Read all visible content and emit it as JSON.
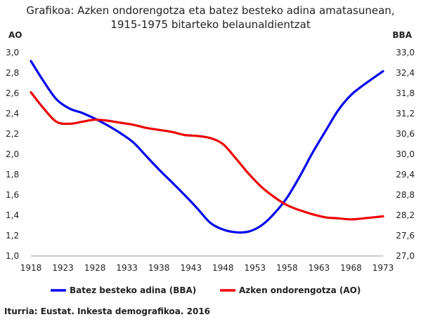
{
  "chart_data": {
    "type": "line",
    "title_lines": [
      "Grafikoa: Azken ondorengotza eta batez besteko adina amatasunean,",
      "1915-1975 bitarteko belaunaldientzat"
    ],
    "left_axis": {
      "label": "AO",
      "min": 1.0,
      "max": 3.0,
      "ticks": [
        "1,0",
        "1,2",
        "1,4",
        "1,6",
        "1,8",
        "2,0",
        "2,2",
        "2,4",
        "2,6",
        "2,8",
        "3,0"
      ]
    },
    "right_axis": {
      "label": "BBA",
      "min": 27.0,
      "max": 33.0,
      "ticks": [
        "27,0",
        "27,6",
        "28,2",
        "28,8",
        "29,4",
        "30,0",
        "30,6",
        "31,2",
        "31,8",
        "32,4",
        "33,0"
      ]
    },
    "x_ticks": [
      "1918",
      "1923",
      "1928",
      "1933",
      "1938",
      "1943",
      "1948",
      "1953",
      "1958",
      "1963",
      "1968",
      "1973"
    ],
    "x_range": [
      1918,
      1973
    ],
    "grid": false,
    "legend_position": "bottom",
    "colors": {
      "blue": "#0000ee",
      "red": "#ee0000"
    },
    "series": [
      {
        "name": "Batez besteko adina (BBA)",
        "axis": "right",
        "color": "#0000ee",
        "x": [
          1918,
          1920,
          1922,
          1924,
          1926,
          1928,
          1930,
          1932,
          1934,
          1936,
          1938,
          1940,
          1942,
          1944,
          1946,
          1948,
          1950,
          1952,
          1954,
          1956,
          1958,
          1960,
          1962,
          1964,
          1966,
          1968,
          1970,
          1973
        ],
        "y": [
          32.75,
          32.15,
          31.62,
          31.35,
          31.22,
          31.05,
          30.85,
          30.62,
          30.35,
          29.95,
          29.55,
          29.18,
          28.8,
          28.4,
          27.98,
          27.78,
          27.7,
          27.72,
          27.9,
          28.25,
          28.72,
          29.35,
          30.05,
          30.68,
          31.3,
          31.75,
          32.05,
          32.45
        ]
      },
      {
        "name": "Azken ondorengotza (AO)",
        "axis": "left",
        "color": "#ee0000",
        "x": [
          1918,
          1920,
          1922,
          1924,
          1926,
          1928,
          1930,
          1932,
          1934,
          1936,
          1938,
          1940,
          1942,
          1944,
          1946,
          1948,
          1950,
          1952,
          1954,
          1956,
          1958,
          1960,
          1962,
          1964,
          1966,
          1968,
          1970,
          1973
        ],
        "y": [
          2.61,
          2.45,
          2.32,
          2.3,
          2.32,
          2.34,
          2.33,
          2.31,
          2.29,
          2.26,
          2.24,
          2.22,
          2.19,
          2.18,
          2.16,
          2.1,
          1.96,
          1.81,
          1.68,
          1.58,
          1.5,
          1.45,
          1.41,
          1.38,
          1.37,
          1.36,
          1.37,
          1.39
        ]
      }
    ],
    "source": "Iturria: Eustat.  Inkesta demografikoa. 2016"
  }
}
